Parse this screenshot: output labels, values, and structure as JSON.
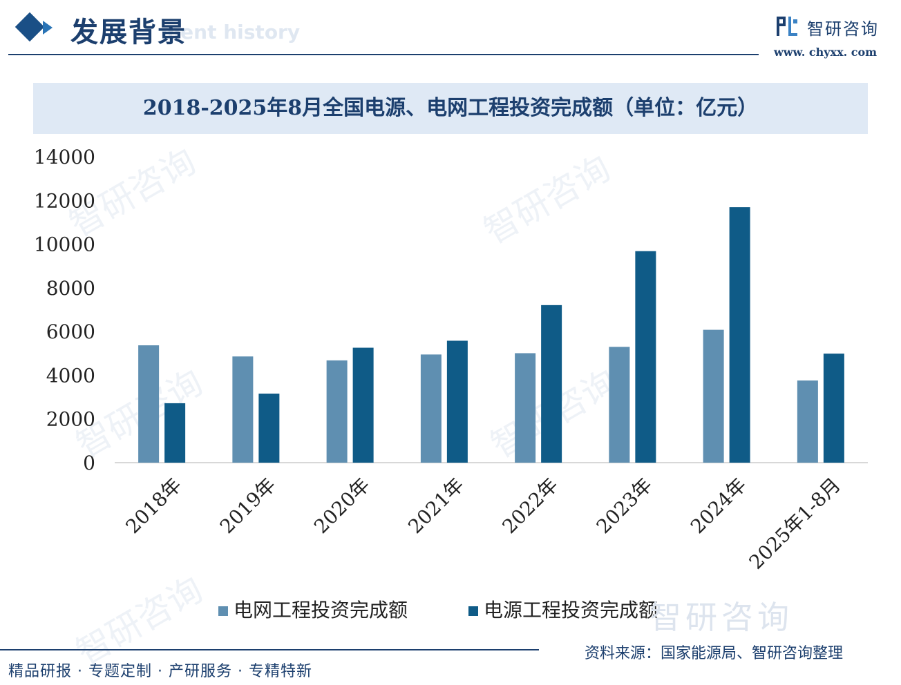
{
  "header": {
    "title": "发展背景",
    "title_en": "ment history",
    "brand_name": "智研咨询",
    "brand_url": "www. chyxx. com"
  },
  "chart_data": {
    "type": "bar",
    "title": "2018-2025年8月全国电源、电网工程投资完成额（单位：亿元）",
    "categories": [
      "2018年",
      "2019年",
      "2020年",
      "2021年",
      "2022年",
      "2023年",
      "2024年",
      "2025年1-8月"
    ],
    "series": [
      {
        "name": "电网工程投资完成额",
        "color": "#5f8fb1",
        "values": [
          5370,
          4860,
          4680,
          4950,
          5010,
          5300,
          6080,
          3760
        ]
      },
      {
        "name": "电源工程投资完成额",
        "color": "#0f5b87",
        "values": [
          2720,
          3160,
          5260,
          5580,
          7210,
          9680,
          11690,
          4990
        ]
      }
    ],
    "ylim": [
      0,
      14000
    ],
    "yticks": [
      0,
      2000,
      4000,
      6000,
      8000,
      10000,
      12000,
      14000
    ],
    "xlabel": "",
    "ylabel": "",
    "grid": false
  },
  "watermark": "智研咨询",
  "source": "资料来源：国家能源局、智研咨询整理",
  "footer": "精品研报 · 专题定制 · 产研服务 · 专精特新"
}
